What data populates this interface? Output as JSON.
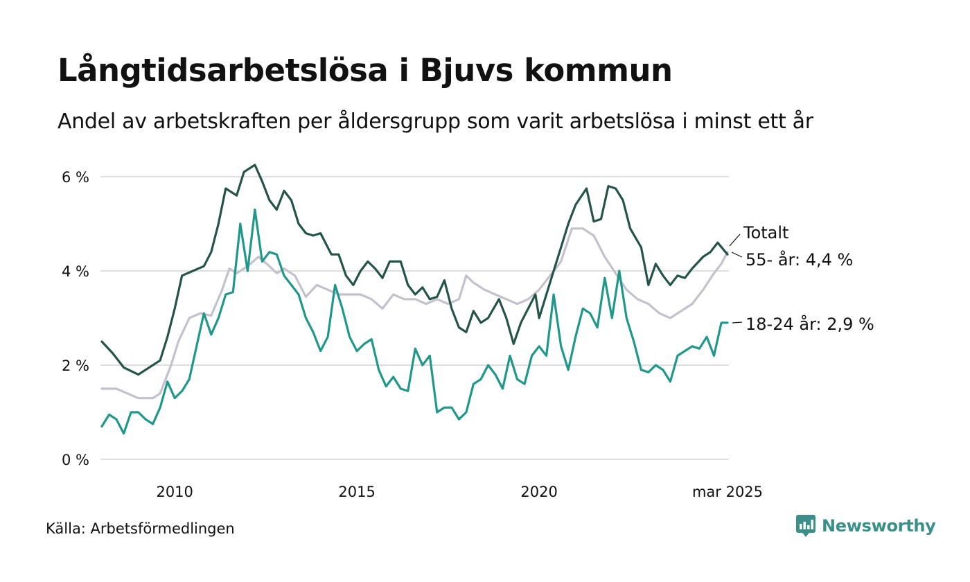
{
  "title": "Långtidsarbetslösa i Bjuvs kommun",
  "subtitle": "Andel av arbetskraften per åldersgrupp som varit arbetslösa i minst ett år",
  "source": "Källa: Arbetsförmedlingen",
  "brand": {
    "name": "Newsworthy",
    "icon": "newsworthy-logo-icon"
  },
  "colors": {
    "totalt": "#245349",
    "age55": "#c3c1cc",
    "age18_24": "#1f978a",
    "grid": "#dedde3",
    "brand": "#3a8f88"
  },
  "chart_data": {
    "type": "line",
    "title": "Långtidsarbetslösa i Bjuvs kommun",
    "subtitle": "Andel av arbetskraften per åldersgrupp som varit arbetslösa i minst ett år",
    "ylim": [
      0,
      6
    ],
    "xlim": [
      2008.0,
      2025.17
    ],
    "y_ticks": [
      0,
      2,
      4,
      6
    ],
    "y_tick_labels": [
      "0 %",
      "2 %",
      "4 %",
      "6 %"
    ],
    "x_ticks": [
      2010,
      2015,
      2020,
      2025.17
    ],
    "x_tick_labels": [
      "2010",
      "2015",
      "2020",
      "mar 2025"
    ],
    "grid": true,
    "legend": "direct labels at line ends",
    "series": [
      {
        "name": "Totalt",
        "label": "Totalt",
        "color": "#245349",
        "points": [
          [
            2008.0,
            2.5
          ],
          [
            2008.3,
            2.25
          ],
          [
            2008.6,
            1.95
          ],
          [
            2009.0,
            1.8
          ],
          [
            2009.2,
            1.9
          ],
          [
            2009.6,
            2.1
          ],
          [
            2009.8,
            2.6
          ],
          [
            2010.0,
            3.2
          ],
          [
            2010.2,
            3.9
          ],
          [
            2010.5,
            4.0
          ],
          [
            2010.8,
            4.1
          ],
          [
            2011.0,
            4.4
          ],
          [
            2011.2,
            5.0
          ],
          [
            2011.4,
            5.75
          ],
          [
            2011.7,
            5.6
          ],
          [
            2011.9,
            6.1
          ],
          [
            2012.2,
            6.25
          ],
          [
            2012.4,
            5.9
          ],
          [
            2012.6,
            5.5
          ],
          [
            2012.8,
            5.3
          ],
          [
            2013.0,
            5.7
          ],
          [
            2013.2,
            5.5
          ],
          [
            2013.4,
            5.0
          ],
          [
            2013.6,
            4.8
          ],
          [
            2013.8,
            4.75
          ],
          [
            2014.0,
            4.8
          ],
          [
            2014.3,
            4.35
          ],
          [
            2014.5,
            4.35
          ],
          [
            2014.7,
            3.9
          ],
          [
            2014.9,
            3.7
          ],
          [
            2015.1,
            4.0
          ],
          [
            2015.3,
            4.2
          ],
          [
            2015.5,
            4.05
          ],
          [
            2015.7,
            3.85
          ],
          [
            2015.9,
            4.2
          ],
          [
            2016.2,
            4.2
          ],
          [
            2016.4,
            3.7
          ],
          [
            2016.6,
            3.5
          ],
          [
            2016.8,
            3.65
          ],
          [
            2017.0,
            3.4
          ],
          [
            2017.2,
            3.45
          ],
          [
            2017.4,
            3.8
          ],
          [
            2017.6,
            3.2
          ],
          [
            2017.8,
            2.8
          ],
          [
            2018.0,
            2.7
          ],
          [
            2018.2,
            3.15
          ],
          [
            2018.4,
            2.9
          ],
          [
            2018.6,
            3.0
          ],
          [
            2018.9,
            3.4
          ],
          [
            2019.1,
            3.0
          ],
          [
            2019.3,
            2.45
          ],
          [
            2019.5,
            2.9
          ],
          [
            2019.7,
            3.2
          ],
          [
            2019.9,
            3.5
          ],
          [
            2020.0,
            3.0
          ],
          [
            2020.2,
            3.5
          ],
          [
            2020.4,
            4.0
          ],
          [
            2020.6,
            4.5
          ],
          [
            2020.8,
            5.0
          ],
          [
            2021.0,
            5.4
          ],
          [
            2021.3,
            5.75
          ],
          [
            2021.5,
            5.05
          ],
          [
            2021.7,
            5.1
          ],
          [
            2021.9,
            5.8
          ],
          [
            2022.1,
            5.75
          ],
          [
            2022.3,
            5.5
          ],
          [
            2022.5,
            4.9
          ],
          [
            2022.8,
            4.5
          ],
          [
            2023.0,
            3.7
          ],
          [
            2023.2,
            4.15
          ],
          [
            2023.4,
            3.9
          ],
          [
            2023.6,
            3.7
          ],
          [
            2023.8,
            3.9
          ],
          [
            2024.0,
            3.85
          ],
          [
            2024.2,
            4.05
          ],
          [
            2024.5,
            4.3
          ],
          [
            2024.7,
            4.4
          ],
          [
            2024.9,
            4.6
          ],
          [
            2025.17,
            4.35
          ]
        ]
      },
      {
        "name": "55- år",
        "label": "55- år: 4,4 %",
        "color": "#c3c1cc",
        "points": [
          [
            2008.0,
            1.5
          ],
          [
            2008.4,
            1.5
          ],
          [
            2008.7,
            1.4
          ],
          [
            2009.0,
            1.3
          ],
          [
            2009.4,
            1.3
          ],
          [
            2009.6,
            1.4
          ],
          [
            2009.9,
            2.0
          ],
          [
            2010.1,
            2.5
          ],
          [
            2010.4,
            3.0
          ],
          [
            2010.7,
            3.1
          ],
          [
            2011.0,
            3.05
          ],
          [
            2011.3,
            3.6
          ],
          [
            2011.5,
            4.05
          ],
          [
            2011.7,
            3.95
          ],
          [
            2012.0,
            4.1
          ],
          [
            2012.3,
            4.3
          ],
          [
            2012.6,
            4.1
          ],
          [
            2012.8,
            3.95
          ],
          [
            2013.0,
            4.05
          ],
          [
            2013.3,
            3.9
          ],
          [
            2013.6,
            3.45
          ],
          [
            2013.9,
            3.7
          ],
          [
            2014.2,
            3.6
          ],
          [
            2014.5,
            3.5
          ],
          [
            2014.8,
            3.5
          ],
          [
            2015.1,
            3.5
          ],
          [
            2015.4,
            3.4
          ],
          [
            2015.7,
            3.2
          ],
          [
            2016.0,
            3.5
          ],
          [
            2016.3,
            3.4
          ],
          [
            2016.6,
            3.4
          ],
          [
            2016.9,
            3.3
          ],
          [
            2017.2,
            3.4
          ],
          [
            2017.5,
            3.3
          ],
          [
            2017.8,
            3.4
          ],
          [
            2018.0,
            3.9
          ],
          [
            2018.2,
            3.75
          ],
          [
            2018.5,
            3.6
          ],
          [
            2018.8,
            3.5
          ],
          [
            2019.1,
            3.4
          ],
          [
            2019.4,
            3.3
          ],
          [
            2019.7,
            3.4
          ],
          [
            2020.0,
            3.6
          ],
          [
            2020.3,
            3.9
          ],
          [
            2020.6,
            4.2
          ],
          [
            2020.9,
            4.9
          ],
          [
            2021.2,
            4.9
          ],
          [
            2021.5,
            4.75
          ],
          [
            2021.8,
            4.3
          ],
          [
            2022.1,
            3.95
          ],
          [
            2022.4,
            3.6
          ],
          [
            2022.7,
            3.4
          ],
          [
            2023.0,
            3.3
          ],
          [
            2023.3,
            3.1
          ],
          [
            2023.6,
            3.0
          ],
          [
            2023.9,
            3.15
          ],
          [
            2024.2,
            3.3
          ],
          [
            2024.5,
            3.6
          ],
          [
            2024.8,
            3.95
          ],
          [
            2025.0,
            4.15
          ],
          [
            2025.17,
            4.4
          ]
        ]
      },
      {
        "name": "18-24 år",
        "label": "18-24 år: 2,9 %",
        "color": "#1f978a",
        "points": [
          [
            2008.0,
            0.7
          ],
          [
            2008.2,
            0.95
          ],
          [
            2008.4,
            0.85
          ],
          [
            2008.6,
            0.55
          ],
          [
            2008.8,
            1.0
          ],
          [
            2009.0,
            1.0
          ],
          [
            2009.2,
            0.85
          ],
          [
            2009.4,
            0.75
          ],
          [
            2009.6,
            1.1
          ],
          [
            2009.8,
            1.65
          ],
          [
            2010.0,
            1.3
          ],
          [
            2010.2,
            1.45
          ],
          [
            2010.4,
            1.7
          ],
          [
            2010.6,
            2.4
          ],
          [
            2010.8,
            3.1
          ],
          [
            2011.0,
            2.65
          ],
          [
            2011.2,
            3.0
          ],
          [
            2011.4,
            3.5
          ],
          [
            2011.6,
            3.55
          ],
          [
            2011.8,
            5.0
          ],
          [
            2012.0,
            4.0
          ],
          [
            2012.2,
            5.3
          ],
          [
            2012.4,
            4.2
          ],
          [
            2012.6,
            4.4
          ],
          [
            2012.8,
            4.35
          ],
          [
            2013.0,
            3.9
          ],
          [
            2013.2,
            3.7
          ],
          [
            2013.4,
            3.5
          ],
          [
            2013.6,
            3.0
          ],
          [
            2013.8,
            2.7
          ],
          [
            2014.0,
            2.3
          ],
          [
            2014.2,
            2.6
          ],
          [
            2014.4,
            3.7
          ],
          [
            2014.6,
            3.2
          ],
          [
            2014.8,
            2.6
          ],
          [
            2015.0,
            2.3
          ],
          [
            2015.2,
            2.45
          ],
          [
            2015.4,
            2.55
          ],
          [
            2015.6,
            1.9
          ],
          [
            2015.8,
            1.55
          ],
          [
            2016.0,
            1.75
          ],
          [
            2016.2,
            1.5
          ],
          [
            2016.4,
            1.45
          ],
          [
            2016.6,
            2.35
          ],
          [
            2016.8,
            2.0
          ],
          [
            2017.0,
            2.2
          ],
          [
            2017.2,
            1.0
          ],
          [
            2017.4,
            1.1
          ],
          [
            2017.6,
            1.1
          ],
          [
            2017.8,
            0.85
          ],
          [
            2018.0,
            1.0
          ],
          [
            2018.2,
            1.6
          ],
          [
            2018.4,
            1.7
          ],
          [
            2018.6,
            2.0
          ],
          [
            2018.8,
            1.8
          ],
          [
            2019.0,
            1.5
          ],
          [
            2019.2,
            2.2
          ],
          [
            2019.4,
            1.7
          ],
          [
            2019.6,
            1.6
          ],
          [
            2019.8,
            2.2
          ],
          [
            2020.0,
            2.4
          ],
          [
            2020.2,
            2.2
          ],
          [
            2020.4,
            3.5
          ],
          [
            2020.6,
            2.4
          ],
          [
            2020.8,
            1.9
          ],
          [
            2021.0,
            2.6
          ],
          [
            2021.2,
            3.2
          ],
          [
            2021.4,
            3.1
          ],
          [
            2021.6,
            2.8
          ],
          [
            2021.8,
            3.85
          ],
          [
            2022.0,
            3.0
          ],
          [
            2022.2,
            4.0
          ],
          [
            2022.4,
            3.0
          ],
          [
            2022.6,
            2.5
          ],
          [
            2022.8,
            1.9
          ],
          [
            2023.0,
            1.85
          ],
          [
            2023.2,
            2.0
          ],
          [
            2023.4,
            1.9
          ],
          [
            2023.6,
            1.65
          ],
          [
            2023.8,
            2.2
          ],
          [
            2024.0,
            2.3
          ],
          [
            2024.2,
            2.4
          ],
          [
            2024.4,
            2.35
          ],
          [
            2024.6,
            2.6
          ],
          [
            2024.8,
            2.2
          ],
          [
            2025.0,
            2.9
          ],
          [
            2025.17,
            2.9
          ]
        ]
      }
    ]
  }
}
